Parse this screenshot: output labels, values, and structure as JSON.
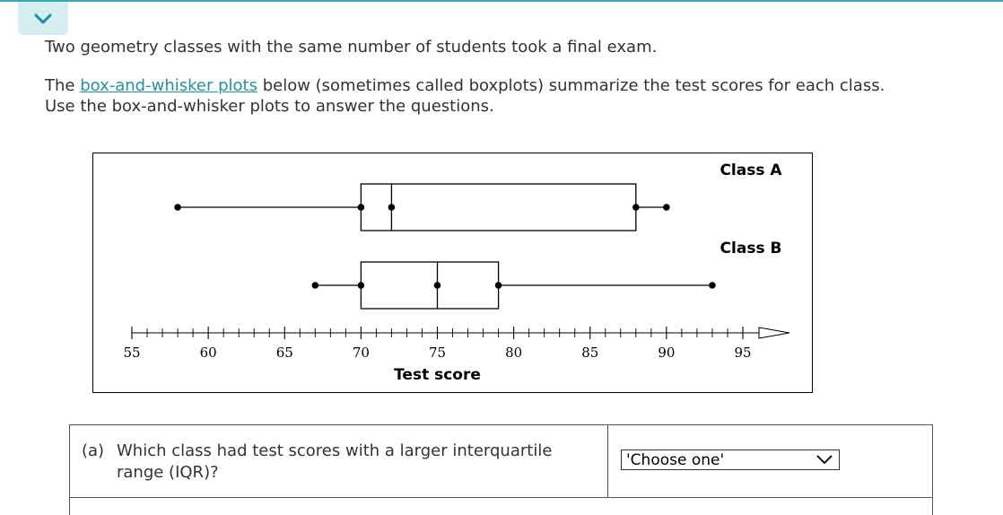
{
  "intro": "Two geometry classes with the same number of students took a final exam.",
  "body": {
    "prefix": "The ",
    "link_text": "box-and-whisker plots",
    "suffix_line1": " below (sometimes called boxplots) summarize the test scores for each class.",
    "line2": "Use the box-and-whisker plots to answer the questions."
  },
  "chart_data": {
    "type": "boxplot",
    "xlabel": "Test score",
    "xlim": [
      55,
      95
    ],
    "major_ticks": [
      55,
      60,
      65,
      70,
      75,
      80,
      85,
      90,
      95
    ],
    "minor_step": 1,
    "series": [
      {
        "name": "Class A",
        "min": 58,
        "q1": 70,
        "median": 72,
        "q3": 88,
        "max": 90
      },
      {
        "name": "Class B",
        "min": 67,
        "q1": 70,
        "median": 75,
        "q3": 79,
        "max": 93
      }
    ]
  },
  "question": {
    "label": "(a)",
    "text": "Which class had test scores with a larger interquartile range (IQR)?",
    "select_value": "'Choose one'"
  },
  "icons": {
    "collapse": "chevron-down-icon",
    "select": "chevron-down-icon"
  },
  "colors": {
    "accent": "#39a8b4",
    "accent_bg": "#d4eef1",
    "link": "#2a8f9c"
  }
}
